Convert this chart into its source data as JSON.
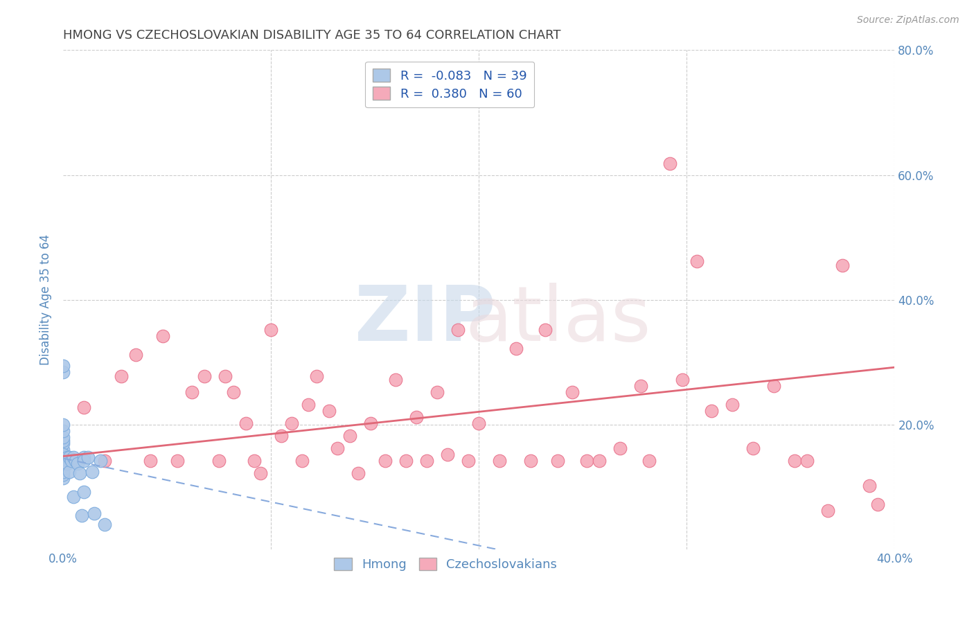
{
  "title": "HMONG VS CZECHOSLOVAKIAN DISABILITY AGE 35 TO 64 CORRELATION CHART",
  "source": "Source: ZipAtlas.com",
  "ylabel": "Disability Age 35 to 64",
  "xlim": [
    0.0,
    0.4
  ],
  "ylim": [
    0.0,
    0.8
  ],
  "xticks": [
    0.0,
    0.1,
    0.2,
    0.3,
    0.4
  ],
  "yticks": [
    0.0,
    0.2,
    0.4,
    0.6,
    0.8
  ],
  "hmong_color": "#adc8e8",
  "czech_color": "#f5aaba",
  "hmong_edge_color": "#7aaadd",
  "czech_edge_color": "#e8708a",
  "hmong_line_color": "#88aadd",
  "czech_line_color": "#e06878",
  "hmong_R": -0.083,
  "hmong_N": 39,
  "czech_R": 0.38,
  "czech_N": 60,
  "hmong_x": [
    0.0,
    0.0,
    0.0,
    0.0,
    0.0,
    0.0,
    0.0,
    0.0,
    0.0,
    0.0,
    0.0,
    0.0,
    0.0,
    0.0,
    0.0,
    0.0,
    0.0,
    0.0,
    0.0,
    0.0,
    0.002,
    0.002,
    0.003,
    0.003,
    0.004,
    0.005,
    0.005,
    0.006,
    0.007,
    0.008,
    0.009,
    0.01,
    0.01,
    0.01,
    0.012,
    0.014,
    0.015,
    0.018,
    0.02
  ],
  "hmong_y": [
    0.285,
    0.295,
    0.145,
    0.13,
    0.115,
    0.12,
    0.14,
    0.155,
    0.16,
    0.17,
    0.175,
    0.18,
    0.19,
    0.2,
    0.135,
    0.148,
    0.152,
    0.145,
    0.138,
    0.125,
    0.148,
    0.138,
    0.148,
    0.125,
    0.142,
    0.148,
    0.085,
    0.142,
    0.138,
    0.122,
    0.055,
    0.148,
    0.092,
    0.142,
    0.148,
    0.125,
    0.058,
    0.142,
    0.04
  ],
  "czech_x": [
    0.01,
    0.02,
    0.028,
    0.035,
    0.042,
    0.048,
    0.055,
    0.062,
    0.068,
    0.075,
    0.078,
    0.082,
    0.088,
    0.092,
    0.095,
    0.1,
    0.105,
    0.11,
    0.115,
    0.118,
    0.122,
    0.128,
    0.132,
    0.138,
    0.142,
    0.148,
    0.155,
    0.16,
    0.165,
    0.17,
    0.175,
    0.18,
    0.185,
    0.19,
    0.195,
    0.2,
    0.21,
    0.218,
    0.225,
    0.232,
    0.238,
    0.245,
    0.252,
    0.258,
    0.268,
    0.278,
    0.282,
    0.292,
    0.298,
    0.305,
    0.312,
    0.322,
    0.332,
    0.342,
    0.352,
    0.358,
    0.368,
    0.375,
    0.388,
    0.392
  ],
  "czech_y": [
    0.228,
    0.142,
    0.278,
    0.312,
    0.142,
    0.342,
    0.142,
    0.252,
    0.278,
    0.142,
    0.278,
    0.252,
    0.202,
    0.142,
    0.122,
    0.352,
    0.182,
    0.202,
    0.142,
    0.232,
    0.278,
    0.222,
    0.162,
    0.182,
    0.122,
    0.202,
    0.142,
    0.272,
    0.142,
    0.212,
    0.142,
    0.252,
    0.152,
    0.352,
    0.142,
    0.202,
    0.142,
    0.322,
    0.142,
    0.352,
    0.142,
    0.252,
    0.142,
    0.142,
    0.162,
    0.262,
    0.142,
    0.618,
    0.272,
    0.462,
    0.222,
    0.232,
    0.162,
    0.262,
    0.142,
    0.142,
    0.062,
    0.455,
    0.102,
    0.072
  ],
  "background_color": "#ffffff",
  "grid_color": "#cccccc",
  "tick_color": "#5588bb",
  "figsize": [
    14.06,
    8.92
  ],
  "dpi": 100
}
